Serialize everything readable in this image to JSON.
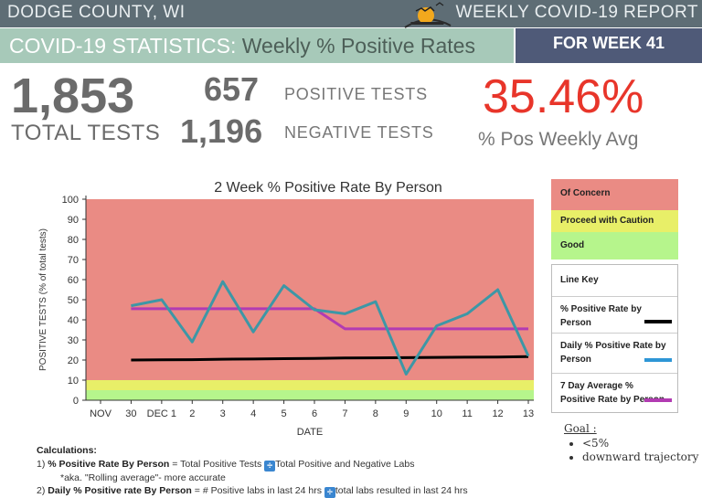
{
  "header": {
    "county": "DODGE COUNTY, WI",
    "report": "WEEKLY COVID-19 REPORT",
    "title_main": "COVID-19 STATISTICS:",
    "title_sub": "Weekly % Positive Rates",
    "week": "FOR WEEK 41"
  },
  "stats": {
    "total_tests": "1,853",
    "total_label": "TOTAL TESTS",
    "positive_tests": "657",
    "positive_label": "POSITIVE TESTS",
    "negative_tests": "1,196",
    "negative_label": "NEGATIVE TESTS",
    "weekly_avg": "35.46%",
    "weekly_avg_label": "% Pos Weekly Avg"
  },
  "colors": {
    "concern": "#ea8b84",
    "caution": "#e8ef68",
    "good": "#b6f58c",
    "rate_by_person": "#000000",
    "daily_rate": "#3d97a6",
    "seven_day_avg": "#b23bb2",
    "avg_text": "#e8352a"
  },
  "legend": {
    "concern": "Of Concern",
    "caution": "Proceed with Caution",
    "good": "Good",
    "line_key": "Line Key",
    "item1": "% Positive Rate by Person",
    "item2": "Daily % Positive Rate by Person",
    "item3": "7 Day Average % Positive Rate by Person"
  },
  "goal": {
    "title": "Goal :",
    "items": [
      "<5%",
      "downward trajectory"
    ]
  },
  "calculations": {
    "title": "Calculations:",
    "line1_num": "1)",
    "line1_label": "% Positive Rate By Person",
    "line1_text_a": "= Total Positive Tests",
    "line1_text_b": "Total Positive and Negative Labs",
    "line1_note": "*aka. \"Rolling average\"- more accurate",
    "line2_num": "2)",
    "line2_label": "Daily % Positive rate By Person",
    "line2_text_a": "= # Positive labs in last 24 hrs",
    "line2_text_b": "total labs resulted in last 24 hrs"
  },
  "chart_data": {
    "type": "line",
    "title": "2 Week % Positive Rate By Person",
    "xlabel": "DATE",
    "ylabel": "POSITIVE TESTS  (% of total tests)",
    "categories": [
      "NOV",
      "30",
      "DEC 1",
      "2",
      "3",
      "4",
      "5",
      "6",
      "7",
      "8",
      "9",
      "10",
      "11",
      "12",
      "13"
    ],
    "ylim": [
      0,
      100
    ],
    "yticks": [
      0,
      10,
      20,
      30,
      40,
      50,
      60,
      70,
      80,
      90,
      100
    ],
    "bands": [
      {
        "label": "Good",
        "from": 0,
        "to": 5
      },
      {
        "label": "Proceed with Caution",
        "from": 5,
        "to": 10
      },
      {
        "label": "Of Concern",
        "from": 10,
        "to": 100
      }
    ],
    "series": [
      {
        "name": "% Positive Rate by Person",
        "values": [
          null,
          20,
          20.1,
          20.2,
          20.4,
          20.5,
          20.7,
          20.8,
          21.0,
          21.1,
          21.2,
          21.3,
          21.4,
          21.5,
          21.7
        ]
      },
      {
        "name": "Daily % Positive Rate by Person",
        "values": [
          null,
          47,
          50,
          29,
          59,
          34,
          57,
          45,
          43,
          49,
          13,
          37,
          43,
          55,
          22
        ]
      },
      {
        "name": "7 Day Average % Positive Rate by Person",
        "values": [
          null,
          45.5,
          45.5,
          45.5,
          45.5,
          45.5,
          45.5,
          45.5,
          35.5,
          35.5,
          35.5,
          35.5,
          35.5,
          35.5,
          35.5
        ]
      }
    ],
    "grid": false,
    "legend_position": "right"
  }
}
